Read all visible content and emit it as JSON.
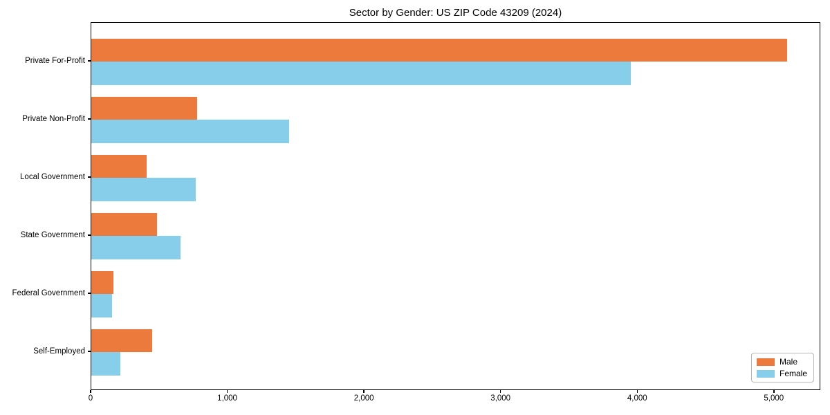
{
  "chart_data": {
    "type": "bar",
    "orientation": "horizontal",
    "title": "Sector by Gender: US ZIP Code 43209 (2024)",
    "categories": [
      "Private For-Profit",
      "Private Non-Profit",
      "Local Government",
      "State Government",
      "Federal Government",
      "Self-Employed"
    ],
    "series": [
      {
        "name": "Male",
        "color": "#EC7A3C",
        "values": [
          5090,
          775,
          405,
          480,
          160,
          445
        ]
      },
      {
        "name": "Female",
        "color": "#87CEEB",
        "values": [
          3950,
          1450,
          765,
          655,
          150,
          215
        ]
      }
    ],
    "xlim": [
      0,
      5340
    ],
    "xticks": [
      0,
      1000,
      2000,
      3000,
      4000,
      5000
    ],
    "xtick_labels": [
      "0",
      "1,000",
      "2,000",
      "3,000",
      "4,000",
      "5,000"
    ],
    "xlabel": "",
    "ylabel": "",
    "grid": false,
    "legend": {
      "position": "lower right",
      "entries": [
        "Male",
        "Female"
      ]
    },
    "background": "#ffffff",
    "spine_color": "#000000"
  }
}
